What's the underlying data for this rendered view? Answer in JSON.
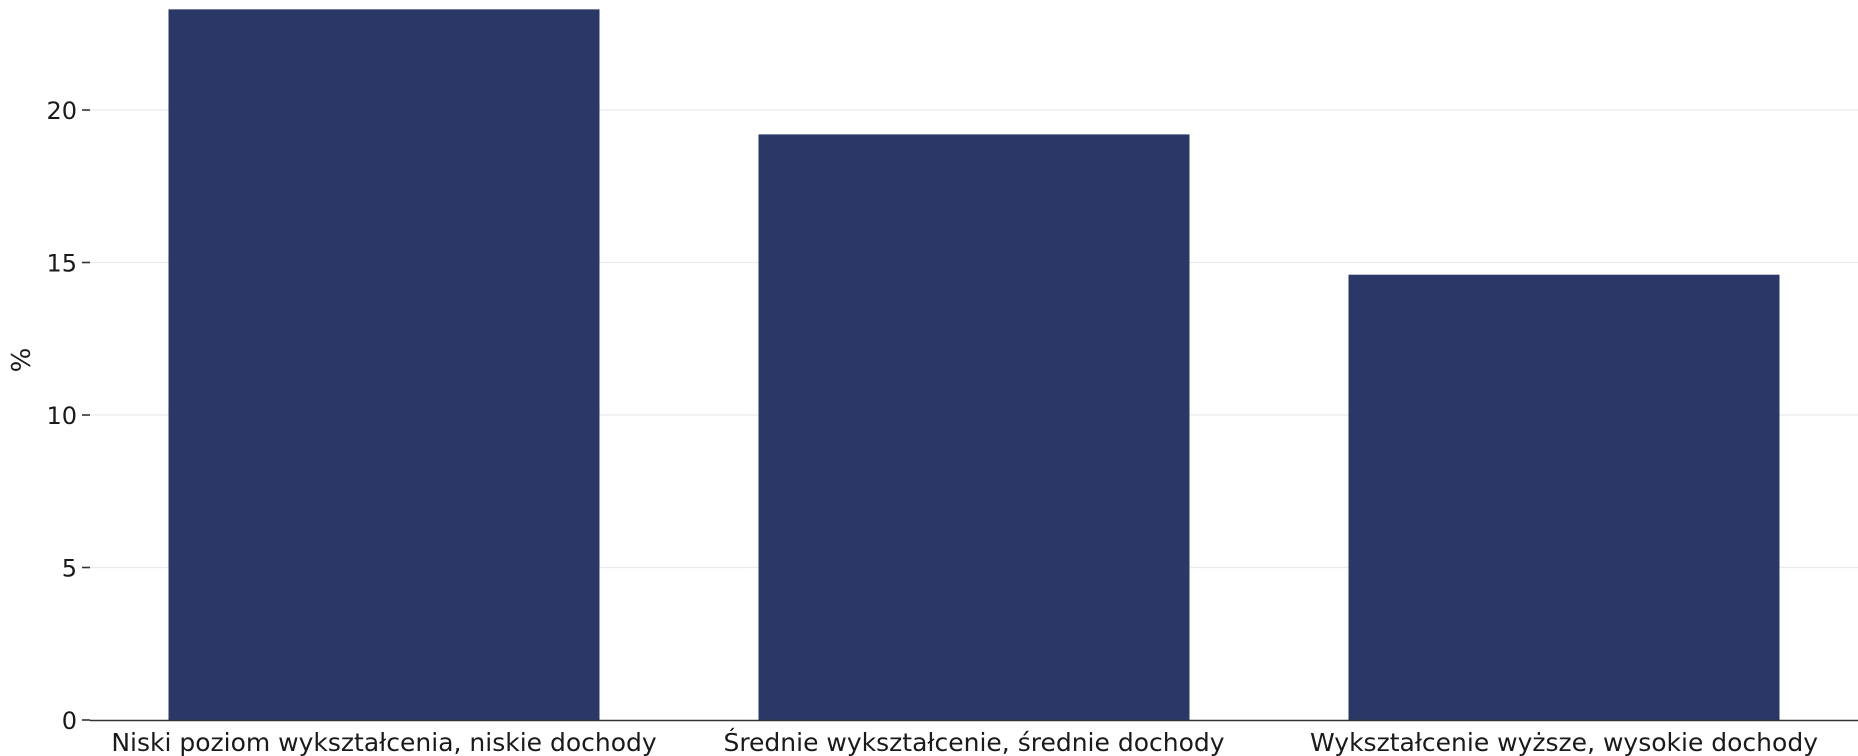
{
  "colors": {
    "bar": "#2b3766",
    "grid": "#ebebeb",
    "axis": "#333333",
    "background": "#ffffff"
  },
  "chart_data": {
    "type": "bar",
    "categories": [
      "Niski poziom wykształcenia, niskie dochody",
      "Średnie wykształcenie, średnie dochody",
      "Wykształcenie wyższe, wysokie dochody"
    ],
    "values": [
      23.3,
      19.2,
      14.6
    ],
    "title": "",
    "xlabel": "",
    "ylabel": "%",
    "ylim": [
      0,
      23.3
    ],
    "yticks": [
      0,
      5,
      10,
      15,
      20
    ],
    "grid": true,
    "legend": "none"
  }
}
